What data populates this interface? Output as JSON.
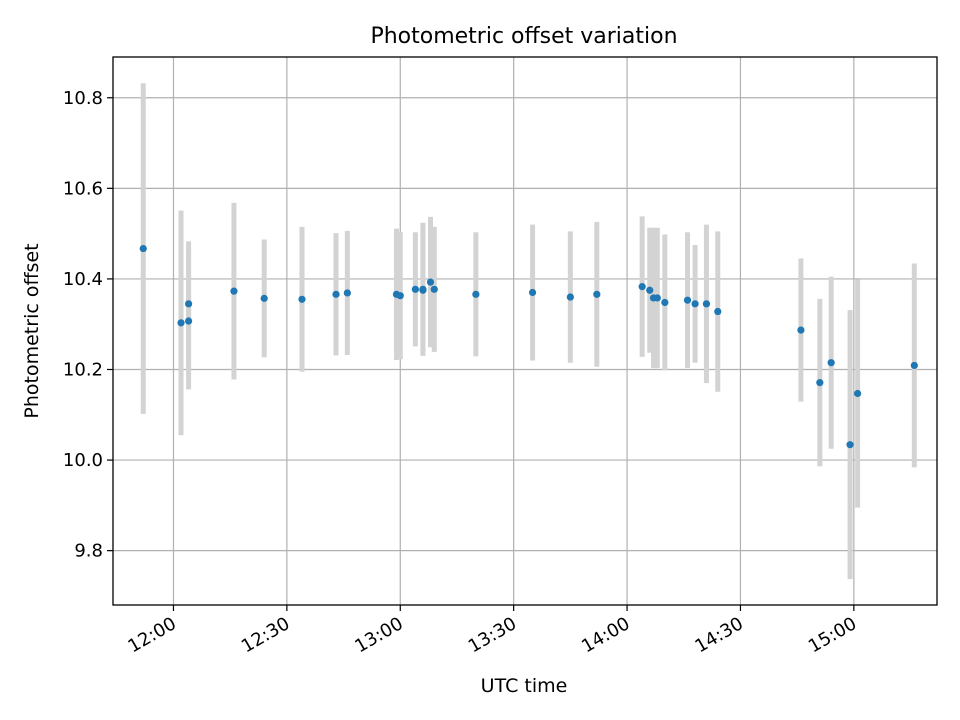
{
  "chart_data": {
    "type": "scatter",
    "title": "Photometric offset variation",
    "xlabel": "UTC time",
    "ylabel": "Photometric offset",
    "grid": true,
    "xlim": [
      "11:44",
      "15:22"
    ],
    "ylim": [
      9.68,
      10.89
    ],
    "x_ticks": [
      "12:00",
      "12:30",
      "13:00",
      "13:30",
      "14:00",
      "14:30",
      "15:00"
    ],
    "y_ticks": [
      9.8,
      10.0,
      10.2,
      10.4,
      10.6,
      10.8
    ],
    "y_tick_labels": [
      "9.8",
      "10.0",
      "10.2",
      "10.4",
      "10.6",
      "10.8"
    ],
    "colors": {
      "point": "#1f77b4",
      "errorbar": "#d3d3d3",
      "grid": "#b0b0b0"
    },
    "series": [
      {
        "points": [
          {
            "x": "11:52",
            "y": 10.467,
            "err": 0.365
          },
          {
            "x": "12:02",
            "y": 10.303,
            "err": 0.248
          },
          {
            "x": "12:04",
            "y": 10.345,
            "err": 0.138
          },
          {
            "x": "12:04",
            "y": 10.307,
            "err": 0.151
          },
          {
            "x": "12:16",
            "y": 10.373,
            "err": 0.195
          },
          {
            "x": "12:24",
            "y": 10.357,
            "err": 0.13
          },
          {
            "x": "12:34",
            "y": 10.355,
            "err": 0.16
          },
          {
            "x": "12:43",
            "y": 10.366,
            "err": 0.135
          },
          {
            "x": "12:46",
            "y": 10.369,
            "err": 0.137
          },
          {
            "x": "12:59",
            "y": 10.366,
            "err": 0.145
          },
          {
            "x": "13:00",
            "y": 10.363,
            "err": 0.14
          },
          {
            "x": "13:04",
            "y": 10.377,
            "err": 0.126
          },
          {
            "x": "13:06",
            "y": 10.377,
            "err": 0.147
          },
          {
            "x": "13:06",
            "y": 10.375,
            "err": 0.142
          },
          {
            "x": "13:08",
            "y": 10.393,
            "err": 0.144
          },
          {
            "x": "13:09",
            "y": 10.377,
            "err": 0.138
          },
          {
            "x": "13:20",
            "y": 10.366,
            "err": 0.137
          },
          {
            "x": "13:35",
            "y": 10.37,
            "err": 0.15
          },
          {
            "x": "13:45",
            "y": 10.36,
            "err": 0.145
          },
          {
            "x": "13:52",
            "y": 10.366,
            "err": 0.16
          },
          {
            "x": "14:04",
            "y": 10.383,
            "err": 0.155
          },
          {
            "x": "14:06",
            "y": 10.375,
            "err": 0.138
          },
          {
            "x": "14:07",
            "y": 10.358,
            "err": 0.155
          },
          {
            "x": "14:08",
            "y": 10.358,
            "err": 0.155
          },
          {
            "x": "14:10",
            "y": 10.348,
            "err": 0.15
          },
          {
            "x": "14:16",
            "y": 10.353,
            "err": 0.15
          },
          {
            "x": "14:18",
            "y": 10.345,
            "err": 0.13
          },
          {
            "x": "14:21",
            "y": 10.345,
            "err": 0.175
          },
          {
            "x": "14:24",
            "y": 10.328,
            "err": 0.177
          },
          {
            "x": "14:46",
            "y": 10.287,
            "err": 0.158
          },
          {
            "x": "14:51",
            "y": 10.171,
            "err": 0.185
          },
          {
            "x": "14:54",
            "y": 10.215,
            "err": 0.19
          },
          {
            "x": "14:59",
            "y": 10.034,
            "err": 0.297
          },
          {
            "x": "15:01",
            "y": 10.147,
            "err": 0.252
          },
          {
            "x": "15:16",
            "y": 10.209,
            "err": 0.225
          }
        ]
      }
    ]
  }
}
